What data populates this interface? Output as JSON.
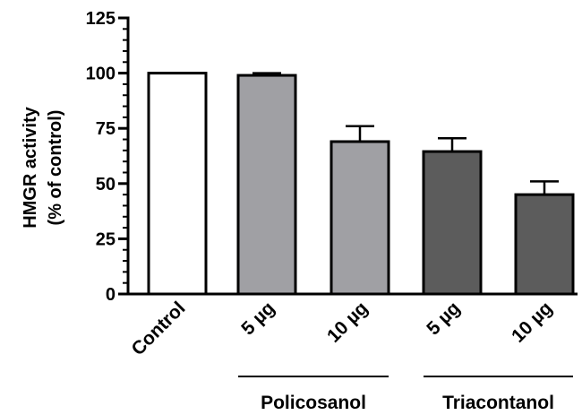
{
  "chart_data": {
    "type": "bar",
    "ylabel_line1": "HMGR activity",
    "ylabel_line2": "(% of control)",
    "ylim": [
      0,
      125
    ],
    "yticks": [
      0,
      25,
      50,
      75,
      100,
      125
    ],
    "y_minor_step": 5,
    "categories": [
      "Control",
      "5 µg",
      "10 µg",
      "5 µg",
      "10 µg"
    ],
    "values": [
      100,
      99,
      69,
      64.5,
      45
    ],
    "errors": [
      0,
      1,
      7,
      6,
      6
    ],
    "bar_colors": [
      "#ffffff",
      "#a0a0a4",
      "#a0a0a4",
      "#5c5c5c",
      "#5c5c5c"
    ],
    "groups": [
      {
        "label": "Policosanol",
        "categories": [
          1,
          2
        ]
      },
      {
        "label": "Triacontanol",
        "categories": [
          3,
          4
        ]
      }
    ],
    "grid": false,
    "legend": "none"
  }
}
